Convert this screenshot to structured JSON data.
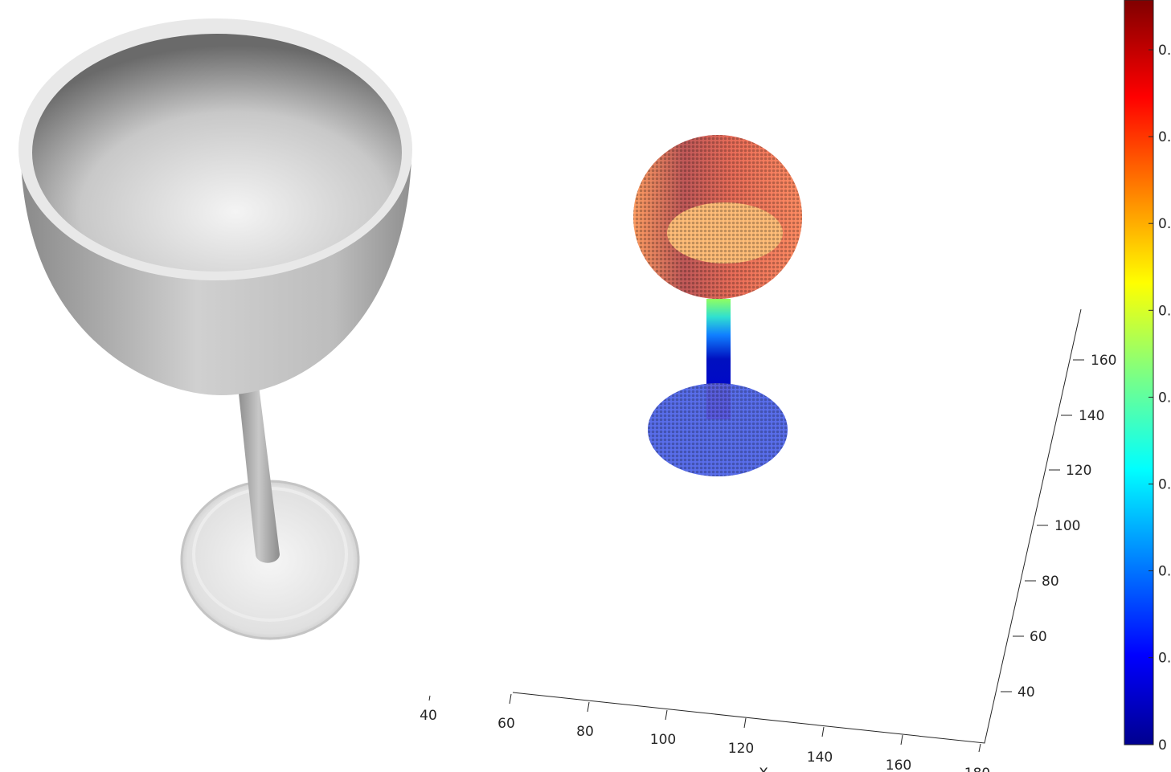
{
  "axes": {
    "x_ticks": [
      "40",
      "60",
      "80",
      "100",
      "120",
      "140",
      "160",
      "180"
    ],
    "x_label": "X",
    "z_ticks": [
      "160",
      "140",
      "120",
      "100",
      "80",
      "60",
      "40"
    ]
  },
  "colorbar": {
    "ticks": [
      "0.",
      "0.",
      "0.",
      "0.",
      "0.",
      "0.",
      "0.",
      "0.",
      "0"
    ]
  }
}
